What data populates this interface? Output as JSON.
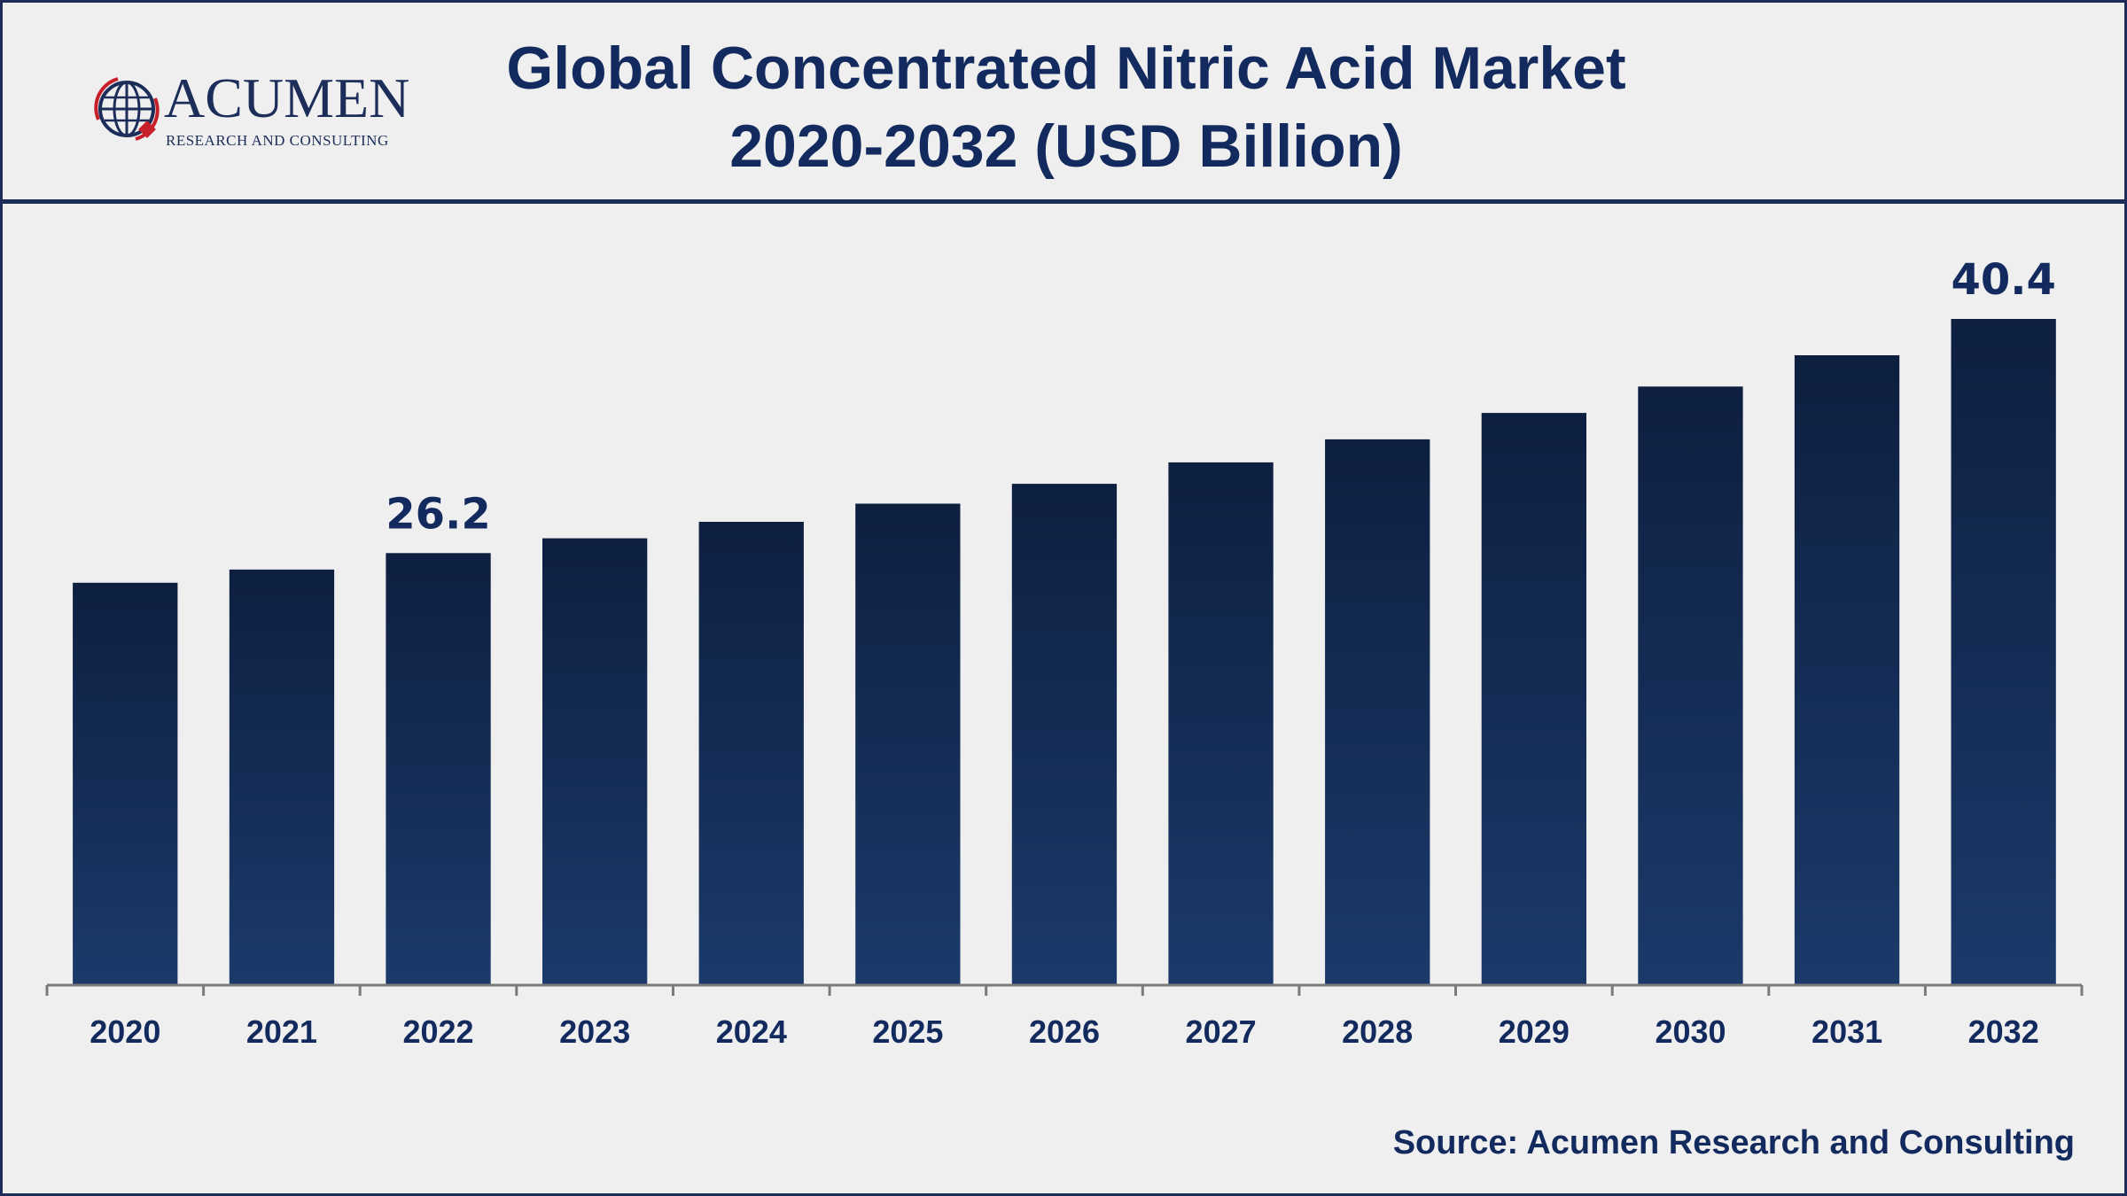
{
  "header": {
    "title_line1": "Global Concentrated Nitric Acid Market",
    "title_line2": "2020-2032 (USD Billion)"
  },
  "logo": {
    "name": "ACUMEN",
    "tagline": "RESEARCH AND CONSULTING"
  },
  "source": "Source: Acumen Research and Consulting",
  "colors": {
    "bar_top": "#0e1f40",
    "bar_bottom": "#1b3a6a",
    "text": "#132a5e",
    "axis": "#7a7a7a",
    "background": "#efefef"
  },
  "chart_data": {
    "type": "bar",
    "categories": [
      "2020",
      "2021",
      "2022",
      "2023",
      "2024",
      "2025",
      "2026",
      "2027",
      "2028",
      "2029",
      "2030",
      "2031",
      "2032"
    ],
    "values": [
      24.4,
      25.2,
      26.2,
      27.1,
      28.1,
      29.2,
      30.4,
      31.7,
      33.1,
      34.7,
      36.3,
      38.2,
      40.4
    ],
    "data_labels": [
      {
        "index": 2,
        "text": "26.2"
      },
      {
        "index": 12,
        "text": "40.4"
      }
    ],
    "title": "Global Concentrated Nitric Acid Market 2020-2032 (USD Billion)",
    "xlabel": "",
    "ylabel": "",
    "ylim": [
      0,
      44
    ],
    "grid": false,
    "legend": "none"
  }
}
